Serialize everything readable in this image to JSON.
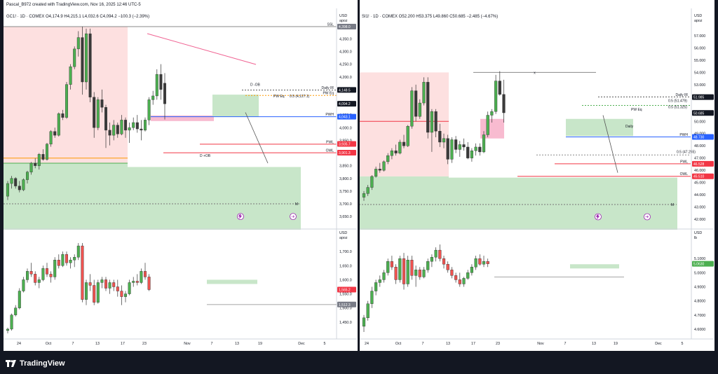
{
  "header_line": "Pascal_B972 created with TradingView.com, Nov 16, 2025 12:46 UTC-5",
  "brand": {
    "name": "TradingView",
    "logo_icon": "tradingview-logo-icon"
  },
  "colors": {
    "bull": "#4caf50",
    "bear": "#ef5350",
    "bull_zone": "#c8e6c9",
    "bear_zone": "#fde0e0",
    "pwh": "#2962ff",
    "pwl": "#f23645",
    "owl": "#f23645",
    "orange": "#ff9800",
    "trend": "#f06292"
  },
  "left": {
    "legend": "GC1! · 1D · COMEX  O4,174.9  H4,215.1  L4,032.6  C4,094.2  −100.3 (−2.39%)",
    "currency": "USD",
    "unit": "apoz",
    "price_axis": [
      "4,350.0",
      "4,300.0",
      "4,250.0",
      "4,200.0",
      "4,150.0",
      "4,100.0",
      "4,050.0",
      "4,000.0",
      "3,950.0",
      "3,900.0",
      "3,850.0",
      "3,800.0",
      "3,750.0",
      "3,700.0",
      "3,650.0"
    ],
    "badges": [
      {
        "text": "4,398.0",
        "type": "gray"
      },
      {
        "text": "4,148.5",
        "type": "dark"
      },
      {
        "text": "4,094.2",
        "type": "dark"
      },
      {
        "text": "4,043.1",
        "type": "blue"
      },
      {
        "text": "3,935.7",
        "type": "red"
      },
      {
        "text": "3,901.3",
        "type": "red"
      }
    ],
    "line_labels": {
      "ssl": "SSL",
      "daily_ir": "Daily IR",
      "pw_eq": "PW Eq",
      "pw_eq_val": "0.5 (4,127.1)",
      "pwh": "PWH",
      "pwl": "PWL",
      "owl": "OWL",
      "d_ob": "D -OB",
      "d_ob2": "D +OB",
      "m": "M"
    },
    "sub_axis": [
      "1,700.0",
      "1,650.0",
      "1,600.0",
      "1,550.0",
      "1,500.0",
      "1,450.0"
    ],
    "sub_currency": "USD",
    "sub_unit": "apoz",
    "sub_badges": [
      {
        "text": "1,565.2",
        "type": "red"
      },
      {
        "text": "1,512.3",
        "type": "gray"
      }
    ],
    "time_axis": [
      "24",
      "Oct",
      "7",
      "13",
      "17",
      "23",
      "Nov",
      "7",
      "13",
      "19",
      "Dec",
      "5"
    ],
    "icons": [
      "lightning-icon",
      "forward-icon"
    ]
  },
  "right": {
    "legend": "SI1! · 1D · COMEX  O52.200  H53.375  L49.860  C50.685  −2.485 (−4.67%)",
    "currency": "USD",
    "unit": "apoz",
    "price_axis": [
      "57.000",
      "56.000",
      "55.000",
      "54.000",
      "53.000",
      "52.000",
      "50.000",
      "49.000",
      "48.000",
      "47.000",
      "46.000",
      "45.000",
      "44.000",
      "43.000",
      "42.000"
    ],
    "badges": [
      {
        "text": "51.985",
        "type": "dark"
      },
      {
        "text": "50.685",
        "type": "dark"
      },
      {
        "text": "48.730",
        "type": "blue"
      },
      {
        "text": "46.528",
        "type": "red"
      },
      {
        "text": "45.510",
        "type": "red"
      }
    ],
    "line_labels": {
      "x": "x",
      "daily_ir": "Daily IR",
      "pw_eq": "PW Eq",
      "eq1": "0.5 (51.479)",
      "eq2": "0.5 (51.325)",
      "eq3": "0.5 (47.255)",
      "daily": "Daily",
      "pwh": "PWH",
      "pwl": "PWL",
      "owl": "OWL",
      "m": "M"
    },
    "sub_axis": [
      "5.1000",
      "5.0000",
      "4.9000",
      "4.8000",
      "4.7000",
      "4.6000"
    ],
    "sub_currency": "USD",
    "sub_unit": "lb",
    "sub_badges": [
      {
        "text": "5.0630",
        "type": "green"
      }
    ],
    "time_axis": [
      "24",
      "Oct",
      "7",
      "13",
      "17",
      "23",
      "Nov",
      "7",
      "13",
      "19",
      "Dec",
      "5"
    ],
    "icons": [
      "lightning-icon",
      "forward-icon"
    ]
  },
  "chart_data": [
    {
      "type": "candlestick",
      "title": "GC1! · 1D · COMEX",
      "ylim": [
        3620,
        4420
      ],
      "candles": [
        [
          3730,
          3790,
          3715,
          3780
        ],
        [
          3780,
          3810,
          3760,
          3800
        ],
        [
          3800,
          3805,
          3760,
          3770
        ],
        [
          3770,
          3790,
          3745,
          3755
        ],
        [
          3755,
          3800,
          3750,
          3795
        ],
        [
          3795,
          3830,
          3780,
          3825
        ],
        [
          3825,
          3865,
          3815,
          3860
        ],
        [
          3860,
          3880,
          3840,
          3850
        ],
        [
          3850,
          3900,
          3835,
          3895
        ],
        [
          3895,
          3915,
          3870,
          3875
        ],
        [
          3875,
          3940,
          3870,
          3935
        ],
        [
          3935,
          3990,
          3925,
          3985
        ],
        [
          3985,
          4000,
          3960,
          3970
        ],
        [
          3970,
          4060,
          3965,
          4055
        ],
        [
          4055,
          4070,
          4030,
          4040
        ],
        [
          4040,
          4180,
          4035,
          4170
        ],
        [
          4170,
          4250,
          4150,
          4240
        ],
        [
          4240,
          4320,
          4230,
          4310
        ],
        [
          4310,
          4380,
          4280,
          4355
        ],
        [
          4355,
          4398,
          4130,
          4180
        ],
        [
          4180,
          4390,
          4150,
          4370
        ],
        [
          4370,
          4390,
          4100,
          4120
        ],
        [
          4120,
          4140,
          3960,
          4000
        ],
        [
          4000,
          4120,
          3990,
          4110
        ],
        [
          4110,
          4150,
          4060,
          4080
        ],
        [
          4080,
          4090,
          3920,
          3990
        ],
        [
          3990,
          4020,
          3930,
          3970
        ],
        [
          3970,
          4030,
          3950,
          4010
        ],
        [
          4010,
          4020,
          3960,
          3975
        ],
        [
          3975,
          4050,
          3970,
          4030
        ],
        [
          4030,
          4040,
          3960,
          3990
        ],
        [
          3990,
          4020,
          3940,
          4000
        ],
        [
          4000,
          4040,
          3990,
          4020
        ],
        [
          4020,
          4050,
          3980,
          3995
        ],
        [
          3995,
          4030,
          3950,
          3990
        ],
        [
          3990,
          4040,
          3985,
          4030
        ],
        [
          4030,
          4120,
          4010,
          4110
        ],
        [
          4110,
          4145,
          4090,
          4125
        ],
        [
          4125,
          4230,
          4110,
          4210
        ],
        [
          4210,
          4250,
          4110,
          4150
        ],
        [
          4175,
          4215,
          4032,
          4094
        ]
      ],
      "sub": {
        "ylim": [
          1400,
          1750
        ],
        "candles": [
          [
            1420,
            1430,
            1410,
            1425
          ],
          [
            1425,
            1480,
            1420,
            1475
          ],
          [
            1475,
            1510,
            1470,
            1500
          ],
          [
            1500,
            1570,
            1495,
            1560
          ],
          [
            1560,
            1610,
            1555,
            1600
          ],
          [
            1600,
            1640,
            1590,
            1630
          ],
          [
            1630,
            1660,
            1610,
            1620
          ],
          [
            1620,
            1630,
            1580,
            1590
          ],
          [
            1590,
            1610,
            1570,
            1600
          ],
          [
            1600,
            1650,
            1595,
            1640
          ],
          [
            1640,
            1660,
            1610,
            1620
          ],
          [
            1620,
            1630,
            1590,
            1610
          ],
          [
            1610,
            1680,
            1600,
            1670
          ],
          [
            1670,
            1690,
            1640,
            1650
          ],
          [
            1650,
            1700,
            1645,
            1690
          ],
          [
            1690,
            1700,
            1650,
            1660
          ],
          [
            1660,
            1680,
            1640,
            1670
          ],
          [
            1670,
            1690,
            1645,
            1680
          ],
          [
            1680,
            1730,
            1670,
            1720
          ],
          [
            1720,
            1730,
            1520,
            1530
          ],
          [
            1530,
            1600,
            1510,
            1590
          ],
          [
            1590,
            1620,
            1560,
            1580
          ],
          [
            1580,
            1600,
            1510,
            1520
          ],
          [
            1520,
            1600,
            1515,
            1590
          ],
          [
            1590,
            1610,
            1570,
            1600
          ],
          [
            1600,
            1610,
            1560,
            1570
          ],
          [
            1570,
            1600,
            1550,
            1590
          ],
          [
            1590,
            1600,
            1560,
            1575
          ],
          [
            1575,
            1600,
            1540,
            1560
          ],
          [
            1560,
            1580,
            1510,
            1540
          ],
          [
            1540,
            1560,
            1520,
            1550
          ],
          [
            1550,
            1600,
            1545,
            1590
          ],
          [
            1590,
            1610,
            1575,
            1595
          ],
          [
            1595,
            1620,
            1580,
            1590
          ],
          [
            1590,
            1640,
            1585,
            1630
          ],
          [
            1630,
            1660,
            1600,
            1610
          ],
          [
            1610,
            1620,
            1560,
            1565
          ]
        ]
      }
    },
    {
      "type": "candlestick",
      "title": "SI1! · 1D · COMEX",
      "ylim": [
        41.6,
        58.2
      ],
      "candles": [
        [
          43.8,
          44.3,
          43.5,
          44.1
        ],
        [
          44.1,
          44.8,
          43.9,
          44.6
        ],
        [
          44.6,
          45.6,
          44.4,
          45.5
        ],
        [
          45.5,
          46.3,
          45.4,
          46.1
        ],
        [
          46.1,
          46.6,
          45.8,
          46.0
        ],
        [
          46.0,
          46.8,
          45.9,
          46.7
        ],
        [
          46.7,
          47.4,
          46.5,
          47.2
        ],
        [
          47.2,
          47.8,
          46.9,
          47.6
        ],
        [
          47.6,
          48.1,
          47.2,
          47.4
        ],
        [
          47.4,
          48.5,
          47.3,
          48.3
        ],
        [
          48.3,
          48.9,
          47.8,
          48.0
        ],
        [
          48.0,
          49.7,
          47.9,
          49.6
        ],
        [
          49.6,
          52.8,
          49.4,
          52.5
        ],
        [
          52.5,
          53.0,
          50.0,
          50.4
        ],
        [
          50.4,
          51.8,
          50.2,
          51.5
        ],
        [
          51.5,
          53.6,
          51.3,
          53.2
        ],
        [
          53.2,
          53.6,
          48.6,
          49.1
        ],
        [
          49.1,
          51.0,
          47.5,
          50.8
        ],
        [
          50.8,
          51.0,
          48.7,
          49.2
        ],
        [
          49.2,
          49.8,
          47.9,
          48.3
        ],
        [
          48.3,
          49.0,
          47.8,
          48.6
        ],
        [
          48.6,
          48.9,
          46.5,
          46.9
        ],
        [
          46.9,
          48.7,
          46.6,
          48.5
        ],
        [
          48.5,
          48.8,
          47.4,
          47.7
        ],
        [
          47.7,
          48.4,
          47.1,
          48.1
        ],
        [
          48.1,
          48.6,
          47.6,
          47.9
        ],
        [
          47.9,
          48.3,
          46.9,
          47.0
        ],
        [
          47.0,
          47.8,
          46.7,
          47.6
        ],
        [
          47.6,
          48.2,
          47.2,
          47.9
        ],
        [
          47.9,
          48.2,
          47.2,
          47.5
        ],
        [
          47.5,
          49.2,
          47.4,
          48.9
        ],
        [
          48.9,
          50.8,
          48.7,
          50.5
        ],
        [
          50.5,
          51.0,
          49.9,
          50.8
        ],
        [
          50.8,
          53.8,
          50.6,
          53.3
        ],
        [
          53.3,
          54.1,
          52.1,
          52.2
        ],
        [
          52.2,
          53.4,
          49.9,
          50.7
        ]
      ],
      "sub": {
        "ylim": [
          4.55,
          5.25
        ],
        "candles": [
          [
            4.62,
            4.7,
            4.58,
            4.68
          ],
          [
            4.68,
            4.8,
            4.66,
            4.78
          ],
          [
            4.78,
            4.9,
            4.75,
            4.87
          ],
          [
            4.87,
            4.95,
            4.84,
            4.93
          ],
          [
            4.93,
            4.98,
            4.9,
            4.95
          ],
          [
            4.95,
            5.02,
            4.93,
            5.0
          ],
          [
            5.0,
            5.1,
            4.98,
            5.08
          ],
          [
            5.08,
            5.12,
            5.02,
            5.04
          ],
          [
            5.04,
            5.06,
            4.92,
            4.95
          ],
          [
            4.95,
            5.12,
            4.93,
            5.1
          ],
          [
            5.1,
            5.14,
            4.88,
            4.92
          ],
          [
            4.92,
            5.12,
            4.9,
            5.09
          ],
          [
            5.09,
            5.12,
            4.95,
            4.98
          ],
          [
            4.98,
            5.05,
            4.9,
            5.02
          ],
          [
            5.02,
            5.04,
            4.95,
            4.97
          ],
          [
            4.97,
            5.04,
            4.96,
            5.02
          ],
          [
            5.02,
            5.1,
            5.0,
            5.08
          ],
          [
            5.08,
            5.13,
            5.04,
            5.11
          ],
          [
            5.11,
            5.18,
            5.08,
            5.16
          ],
          [
            5.16,
            5.2,
            5.08,
            5.1
          ],
          [
            5.1,
            5.12,
            5.03,
            5.06
          ],
          [
            5.06,
            5.08,
            5.0,
            5.02
          ],
          [
            5.02,
            5.04,
            4.96,
            4.98
          ],
          [
            4.98,
            5.0,
            4.93,
            4.95
          ],
          [
            4.95,
            5.0,
            4.9,
            4.92
          ],
          [
            4.92,
            4.97,
            4.9,
            4.96
          ],
          [
            4.96,
            5.02,
            4.95,
            5.0
          ],
          [
            5.0,
            5.06,
            4.98,
            5.04
          ],
          [
            5.04,
            5.12,
            5.02,
            5.1
          ],
          [
            5.1,
            5.13,
            5.05,
            5.06
          ],
          [
            5.06,
            5.12,
            5.04,
            5.08
          ],
          [
            5.08,
            5.1,
            5.04,
            5.063
          ]
        ]
      }
    }
  ]
}
